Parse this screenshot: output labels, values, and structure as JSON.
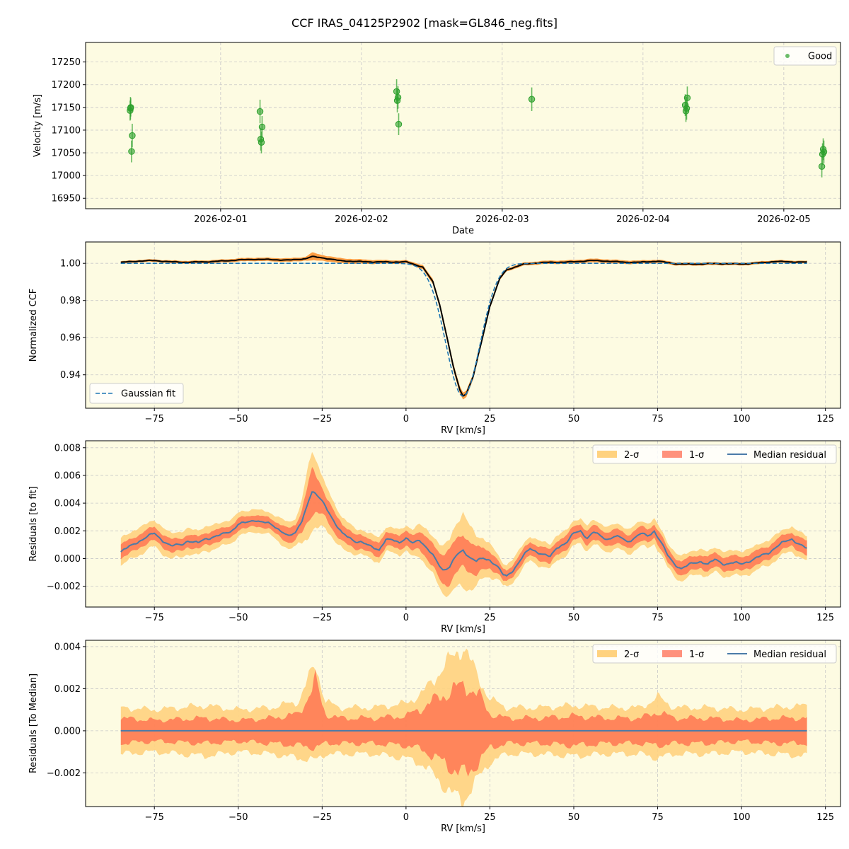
{
  "figure": {
    "title": "CCF IRAS_04125P2902 [mask=GL846_neg.fits]"
  },
  "colors": {
    "panel_bg": "#fdfbe2",
    "grid": "#c8c8c8",
    "good_points": "#2ca02c",
    "ccf_band": "#ff7f0e",
    "ccf_line": "#000000",
    "gauss_fit": "#1f77b4",
    "band_2sigma": "#ffd27f",
    "band_1sigma": "#ff6347",
    "median_line": "#4b7ba8"
  },
  "chart_data": [
    {
      "id": "velocity",
      "type": "scatter",
      "xlabel": "Date",
      "ylabel": "Velocity [m/s]",
      "x_ticks": [
        "2026-02-01",
        "2026-02-02",
        "2026-02-03",
        "2026-02-04",
        "2026-02-05"
      ],
      "y_ticks": [
        16950,
        17000,
        17050,
        17100,
        17150,
        17200,
        17250
      ],
      "xlim": [
        "2026-01-31 00:59",
        "2026-02-05 09:40"
      ],
      "ylim": [
        16927,
        17293
      ],
      "grid": true,
      "legend": {
        "position": "top-right",
        "entries": [
          "Good"
        ]
      },
      "series": [
        {
          "name": "Good",
          "points": [
            {
              "x": "2026-01-31 08:34",
              "y": 17143,
              "err": 22
            },
            {
              "x": "2026-01-31 08:38",
              "y": 17148,
              "err": 25
            },
            {
              "x": "2026-01-31 08:41",
              "y": 17150,
              "err": 20
            },
            {
              "x": "2026-01-31 08:49",
              "y": 17053,
              "err": 24
            },
            {
              "x": "2026-01-31 08:56",
              "y": 17088,
              "err": 26
            },
            {
              "x": "2026-02-01 06:43",
              "y": 17141,
              "err": 26
            },
            {
              "x": "2026-02-01 06:50",
              "y": 17080,
              "err": 25
            },
            {
              "x": "2026-02-01 06:57",
              "y": 17073,
              "err": 24
            },
            {
              "x": "2026-02-01 07:04",
              "y": 17107,
              "err": 24
            },
            {
              "x": "2026-02-02 06:00",
              "y": 17185,
              "err": 27
            },
            {
              "x": "2026-02-02 06:07",
              "y": 17165,
              "err": 26
            },
            {
              "x": "2026-02-02 06:14",
              "y": 17172,
              "err": 25
            },
            {
              "x": "2026-02-02 06:21",
              "y": 17113,
              "err": 24
            },
            {
              "x": "2026-02-03 05:02",
              "y": 17168,
              "err": 26
            },
            {
              "x": "2026-02-04 07:12",
              "y": 17155,
              "err": 24
            },
            {
              "x": "2026-02-04 07:19",
              "y": 17142,
              "err": 24
            },
            {
              "x": "2026-02-04 07:26",
              "y": 17148,
              "err": 25
            },
            {
              "x": "2026-02-04 07:33",
              "y": 17171,
              "err": 25
            },
            {
              "x": "2026-02-05 06:29",
              "y": 17020,
              "err": 24
            },
            {
              "x": "2026-02-05 06:36",
              "y": 17047,
              "err": 24
            },
            {
              "x": "2026-02-05 06:43",
              "y": 17058,
              "err": 24
            },
            {
              "x": "2026-02-05 06:50",
              "y": 17052,
              "err": 25
            }
          ]
        }
      ]
    },
    {
      "id": "ccf",
      "type": "line",
      "xlabel": "RV [km/s]",
      "ylabel": "Normalized CCF",
      "x_ticks": [
        -75,
        -50,
        -25,
        0,
        25,
        50,
        75,
        100,
        125
      ],
      "y_ticks": [
        0.94,
        0.96,
        0.98,
        1.0
      ],
      "y_tick_labels": [
        "0.94",
        "0.96",
        "0.98",
        "1.00"
      ],
      "xlim": [
        -95.5,
        129.5
      ],
      "ylim": [
        0.922,
        1.0115
      ],
      "grid": true,
      "legend": {
        "position": "bottom-left",
        "entries": [
          "Gaussian fit"
        ]
      },
      "gaussian_fit": {
        "center": 17.0,
        "depth": 0.0715,
        "sigma": 5.1,
        "continuum": 1.0
      },
      "ccf_line": {
        "x": [
          -85,
          -80,
          -75,
          -70,
          -65,
          -60,
          -55,
          -50,
          -45,
          -40,
          -35,
          -30,
          -28,
          -25,
          -20,
          -15,
          -10,
          -5,
          0,
          5,
          8,
          10,
          12,
          14,
          16,
          17,
          18,
          20,
          22,
          25,
          28,
          30,
          35,
          40,
          45,
          50,
          55,
          60,
          65,
          70,
          75,
          80,
          85,
          90,
          95,
          100,
          105,
          110,
          115,
          119.5
        ],
        "y": [
          1.0005,
          1.0012,
          1.0015,
          1.0008,
          1.0006,
          1.0008,
          1.0012,
          1.0018,
          1.0022,
          1.002,
          1.0017,
          1.0025,
          1.0036,
          1.003,
          1.0015,
          1.001,
          1.0008,
          1.0007,
          1.0008,
          0.998,
          0.99,
          0.978,
          0.962,
          0.945,
          0.932,
          0.9287,
          0.93,
          0.939,
          0.954,
          0.977,
          0.992,
          0.9965,
          0.9995,
          1.0004,
          1.0006,
          1.0008,
          1.0015,
          1.0012,
          1.0006,
          1.0006,
          1.0012,
          0.9998,
          0.9995,
          0.9998,
          0.9998,
          0.9996,
          1.0002,
          1.001,
          1.0008,
          1.0006
        ]
      },
      "ccf_band_halfwidth": {
        "x": [
          -85,
          -30,
          -28,
          -25,
          0,
          10,
          16,
          20,
          30,
          60,
          80,
          119.5
        ],
        "w": [
          0.0006,
          0.001,
          0.0022,
          0.0015,
          0.0008,
          0.0015,
          0.002,
          0.0015,
          0.0008,
          0.001,
          0.0008,
          0.0007
        ]
      }
    },
    {
      "id": "residuals_fit",
      "type": "area",
      "xlabel": "RV [km/s]",
      "ylabel": "Residuals [to fit]",
      "x_ticks": [
        -75,
        -50,
        -25,
        0,
        25,
        50,
        75,
        100,
        125
      ],
      "y_ticks": [
        -0.002,
        0.0,
        0.002,
        0.004,
        0.006,
        0.008
      ],
      "y_tick_labels": [
        "−0.002",
        "0.000",
        "0.002",
        "0.004",
        "0.006",
        "0.008"
      ],
      "xlim": [
        -95.5,
        129.5
      ],
      "ylim": [
        -0.0035,
        0.0085
      ],
      "grid": true,
      "legend": {
        "position": "top-right",
        "entries": [
          "2-σ",
          "1-σ",
          "Median residual"
        ]
      },
      "median": {
        "x": [
          -85,
          -82,
          -80,
          -77,
          -75,
          -73,
          -70,
          -67,
          -65,
          -62,
          -60,
          -57,
          -55,
          -52,
          -50,
          -47,
          -45,
          -42,
          -40,
          -37,
          -35,
          -33,
          -31,
          -29,
          -28,
          -27,
          -25,
          -23,
          -21,
          -19,
          -17,
          -15,
          -13,
          -10,
          -8,
          -6,
          -4,
          -2,
          0,
          2,
          4,
          6,
          8,
          10,
          11,
          13,
          15,
          17,
          19,
          21,
          23,
          25,
          27,
          29,
          30,
          32,
          35,
          37,
          40,
          43,
          45,
          48,
          50,
          52,
          54,
          56,
          58,
          60,
          62,
          64,
          66,
          68,
          70,
          72,
          74,
          76,
          78,
          80,
          82,
          85,
          88,
          90,
          92,
          95,
          97,
          100,
          102,
          105,
          108,
          110,
          112,
          115,
          117,
          119.5
        ],
        "y": [
          0.0005,
          0.0009,
          0.0012,
          0.0016,
          0.0018,
          0.0014,
          0.0009,
          0.001,
          0.0013,
          0.0011,
          0.0014,
          0.0016,
          0.0017,
          0.002,
          0.0025,
          0.0026,
          0.0028,
          0.0026,
          0.0024,
          0.002,
          0.0016,
          0.0018,
          0.0028,
          0.0042,
          0.0048,
          0.0046,
          0.0042,
          0.0034,
          0.0024,
          0.0018,
          0.0016,
          0.0012,
          0.0011,
          0.0009,
          0.0006,
          0.0013,
          0.0014,
          0.0012,
          0.0014,
          0.0011,
          0.0014,
          0.0008,
          0.0002,
          -0.0005,
          -0.0008,
          -0.0006,
          0.0002,
          0.0006,
          0.0001,
          -0.0002,
          0.0,
          -0.0001,
          -0.0005,
          -0.0012,
          -0.0013,
          -0.0008,
          0.0002,
          0.0007,
          0.0004,
          0.0001,
          0.0008,
          0.0012,
          0.0018,
          0.002,
          0.0015,
          0.0019,
          0.0016,
          0.0014,
          0.0016,
          0.0015,
          0.0012,
          0.0015,
          0.0018,
          0.0016,
          0.002,
          0.0012,
          0.0002,
          -0.0004,
          -0.0007,
          -0.0004,
          -0.0002,
          -0.0004,
          -0.0001,
          -0.0004,
          -0.0003,
          -0.0004,
          -0.0002,
          0.0001,
          0.0004,
          0.0008,
          0.0011,
          0.0014,
          0.0011,
          0.0007
        ]
      },
      "band_1sigma_halfwidth": {
        "x": [
          -85,
          -40,
          -32,
          -28,
          -24,
          -15,
          0,
          8,
          12,
          17,
          22,
          28,
          40,
          60,
          80,
          100,
          119.5
        ],
        "w": [
          0.0005,
          0.0004,
          0.0006,
          0.0016,
          0.0008,
          0.0005,
          0.0005,
          0.0008,
          0.0012,
          0.0012,
          0.0009,
          0.0004,
          0.0005,
          0.0005,
          0.0005,
          0.0005,
          0.0005
        ]
      },
      "band_2sigma_halfwidth": {
        "x": [
          -85,
          -40,
          -32,
          -28,
          -24,
          -15,
          0,
          8,
          12,
          17,
          22,
          28,
          40,
          60,
          80,
          100,
          119.5
        ],
        "w": [
          0.001,
          0.0008,
          0.0011,
          0.003,
          0.0015,
          0.0009,
          0.0009,
          0.0014,
          0.0018,
          0.0027,
          0.0016,
          0.0008,
          0.0009,
          0.0009,
          0.0009,
          0.0009,
          0.0009
        ]
      }
    },
    {
      "id": "residuals_median",
      "type": "area",
      "xlabel": "RV [km/s]",
      "ylabel": "Residuals [To Median]",
      "x_ticks": [
        -75,
        -50,
        -25,
        0,
        25,
        50,
        75,
        100,
        125
      ],
      "y_ticks": [
        -0.002,
        0.0,
        0.002,
        0.004
      ],
      "y_tick_labels": [
        "−0.002",
        "0.000",
        "0.002",
        "0.004"
      ],
      "xlim": [
        -95.5,
        129.5
      ],
      "ylim": [
        -0.0036,
        0.0043
      ],
      "grid": true,
      "legend": {
        "position": "top-right",
        "entries": [
          "2-σ",
          "1-σ",
          "Median residual"
        ]
      },
      "median": {
        "x": [
          -85,
          119.5
        ],
        "y": [
          0.0,
          0.0
        ]
      },
      "band_1sigma_upper": {
        "x": [
          -85,
          -75,
          -60,
          -50,
          -40,
          -32,
          -27,
          -24,
          -20,
          -10,
          0,
          5,
          10,
          15,
          18,
          22,
          25,
          30,
          40,
          50,
          60,
          70,
          75,
          80,
          90,
          100,
          110,
          119.5
        ],
        "w": [
          0.0006,
          0.0005,
          0.0006,
          0.0005,
          0.0006,
          0.0008,
          0.0023,
          0.0008,
          0.0006,
          0.0006,
          0.0007,
          0.0011,
          0.0016,
          0.002,
          0.0022,
          0.0016,
          0.0008,
          0.0006,
          0.0006,
          0.0007,
          0.0006,
          0.0006,
          0.0009,
          0.0006,
          0.0006,
          0.0005,
          0.0006,
          0.0006
        ]
      },
      "band_1sigma_lower": {
        "x": [
          -85,
          -75,
          -60,
          -50,
          -40,
          -32,
          -27,
          -24,
          -20,
          -10,
          0,
          5,
          10,
          15,
          18,
          22,
          25,
          30,
          40,
          50,
          60,
          70,
          75,
          80,
          90,
          100,
          110,
          119.5
        ],
        "w": [
          0.0006,
          0.0005,
          0.0006,
          0.0005,
          0.0006,
          0.0007,
          0.0008,
          0.0006,
          0.0006,
          0.0006,
          0.0007,
          0.0009,
          0.0014,
          0.0019,
          0.0021,
          0.0014,
          0.0008,
          0.0006,
          0.0006,
          0.0007,
          0.0006,
          0.0006,
          0.0007,
          0.0006,
          0.0006,
          0.0005,
          0.0006,
          0.0006
        ]
      },
      "band_2sigma_upper": {
        "x": [
          -85,
          -75,
          -60,
          -50,
          -40,
          -32,
          -27,
          -24,
          -20,
          -10,
          0,
          5,
          10,
          15,
          17,
          20,
          25,
          30,
          40,
          50,
          60,
          70,
          75,
          80,
          90,
          100,
          110,
          119.5
        ],
        "w": [
          0.0011,
          0.001,
          0.0012,
          0.001,
          0.0011,
          0.0014,
          0.0032,
          0.0014,
          0.0011,
          0.0011,
          0.0013,
          0.0018,
          0.0028,
          0.0037,
          0.0041,
          0.003,
          0.0015,
          0.0011,
          0.0011,
          0.0012,
          0.0011,
          0.0011,
          0.0016,
          0.0011,
          0.0011,
          0.001,
          0.0011,
          0.0012
        ]
      },
      "band_2sigma_lower": {
        "x": [
          -85,
          -75,
          -60,
          -50,
          -40,
          -32,
          -27,
          -24,
          -20,
          -10,
          0,
          5,
          10,
          15,
          17,
          20,
          25,
          30,
          40,
          50,
          60,
          70,
          75,
          80,
          90,
          100,
          110,
          119.5
        ],
        "w": [
          0.0011,
          0.001,
          0.0012,
          0.001,
          0.0011,
          0.0013,
          0.0014,
          0.0011,
          0.0011,
          0.0011,
          0.0013,
          0.0016,
          0.0024,
          0.0032,
          0.0033,
          0.0026,
          0.0015,
          0.0011,
          0.0011,
          0.0012,
          0.0011,
          0.0011,
          0.0013,
          0.0011,
          0.0011,
          0.001,
          0.0011,
          0.0012
        ]
      }
    }
  ]
}
